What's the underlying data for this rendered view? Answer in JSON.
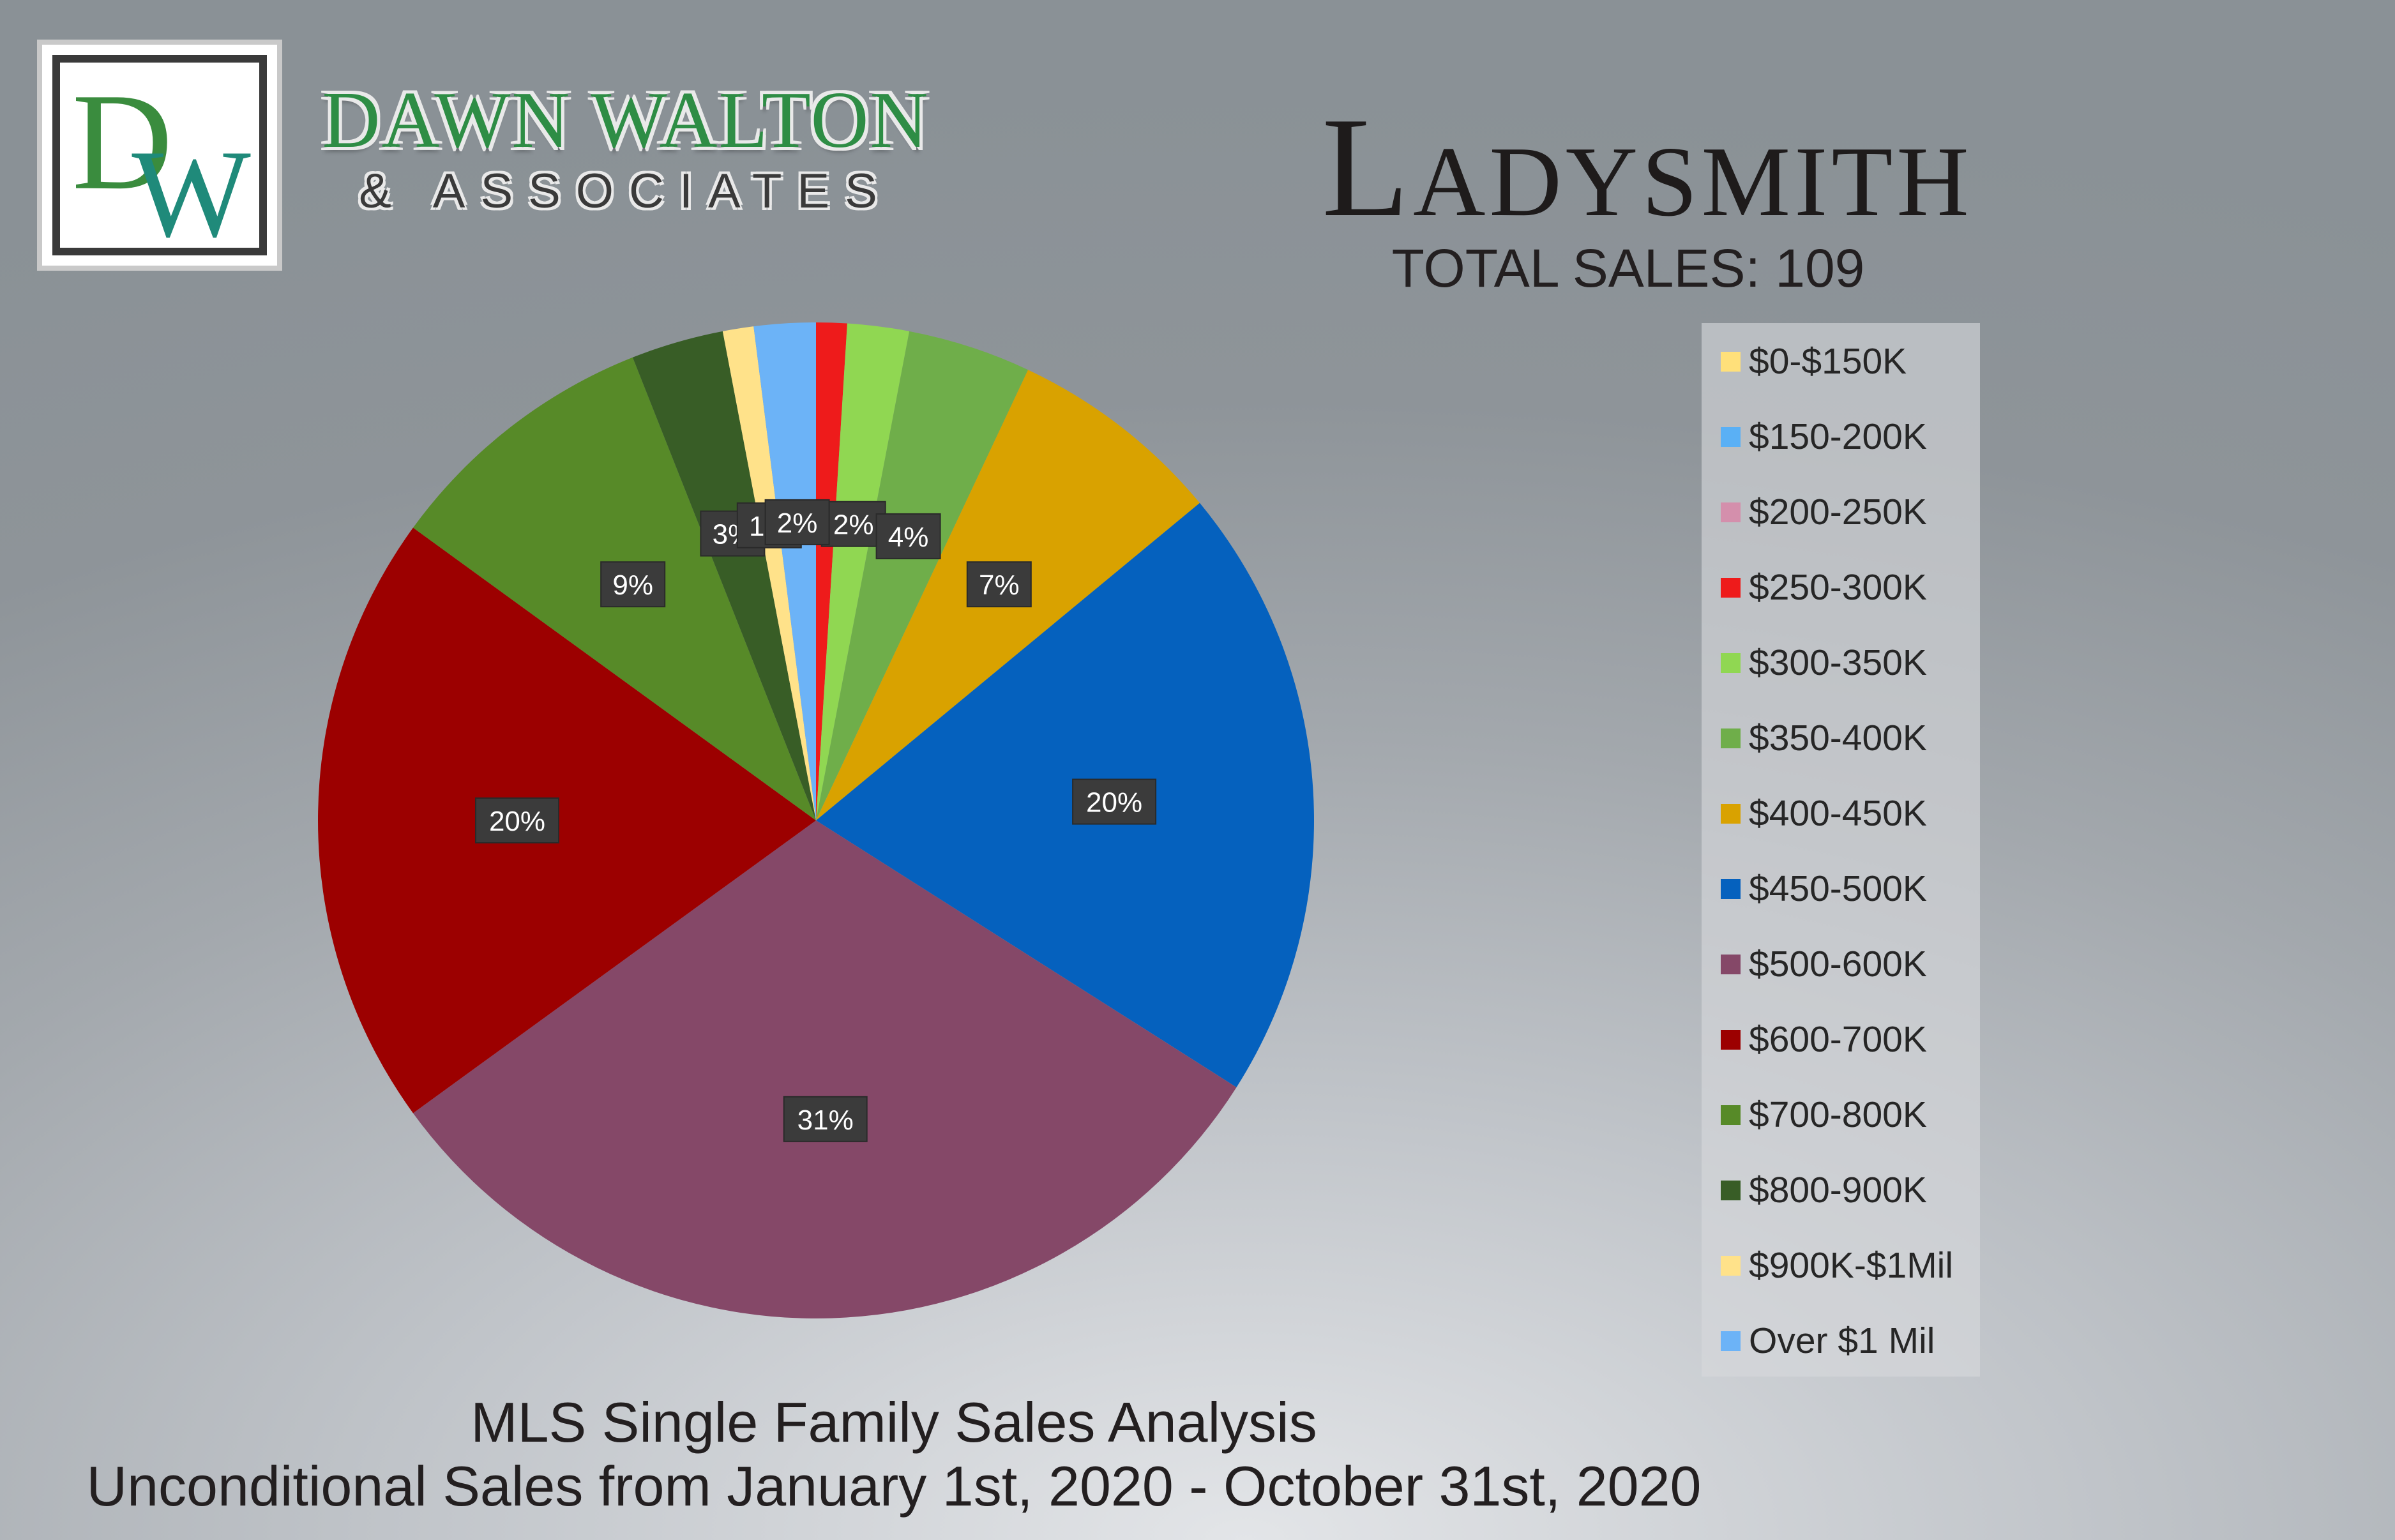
{
  "logo": {
    "monogram": "DW",
    "name": "DAWN WALTON",
    "sub": "& ASSOCIATES",
    "colors": {
      "green": "#3a8c3e",
      "teal": "#1f8a7a",
      "frame": "#3a3a3a"
    }
  },
  "header": {
    "city": "Ladysmith",
    "total_sales": "TOTAL SALES: 109"
  },
  "footer": {
    "line1": "MLS Single Family Sales Analysis",
    "line2": "Unconditional Sales from January 1st, 2020 - October 31st, 2020"
  },
  "chart_data": {
    "type": "pie",
    "title": "",
    "slices": [
      {
        "label": "$0-$150K",
        "value": 0,
        "data_label": "",
        "color": "#ffe07a"
      },
      {
        "label": "$150-200K",
        "value": 0,
        "data_label": "",
        "color": "#5ab0f5"
      },
      {
        "label": "$200-250K",
        "value": 0,
        "data_label": "",
        "color": "#d48fac"
      },
      {
        "label": "$250-300K",
        "value": 1,
        "data_label": "",
        "color": "#ee1b1b"
      },
      {
        "label": "$300-350K",
        "value": 2,
        "data_label": "2%",
        "color": "#90d752"
      },
      {
        "label": "$350-400K",
        "value": 4,
        "data_label": "4%",
        "color": "#6fae4a"
      },
      {
        "label": "$400-450K",
        "value": 7,
        "data_label": "7%",
        "color": "#d9a200"
      },
      {
        "label": "$450-500K",
        "value": 20,
        "data_label": "20%",
        "color": "#0561be"
      },
      {
        "label": "$500-600K",
        "value": 31,
        "data_label": "31%",
        "color": "#854868"
      },
      {
        "label": "$600-700K",
        "value": 20,
        "data_label": "20%",
        "color": "#9c0000"
      },
      {
        "label": "$700-800K",
        "value": 9,
        "data_label": "9%",
        "color": "#578a28"
      },
      {
        "label": "$800-900K",
        "value": 3,
        "data_label": "3%",
        "color": "#385d26"
      },
      {
        "label": "$900K-$1Mil",
        "value": 1,
        "data_label": "1%",
        "color": "#ffe28a"
      },
      {
        "label": "Over $1 Mil",
        "value": 2,
        "data_label": "2%",
        "color": "#6cb3f7"
      }
    ],
    "legend_position": "right"
  }
}
